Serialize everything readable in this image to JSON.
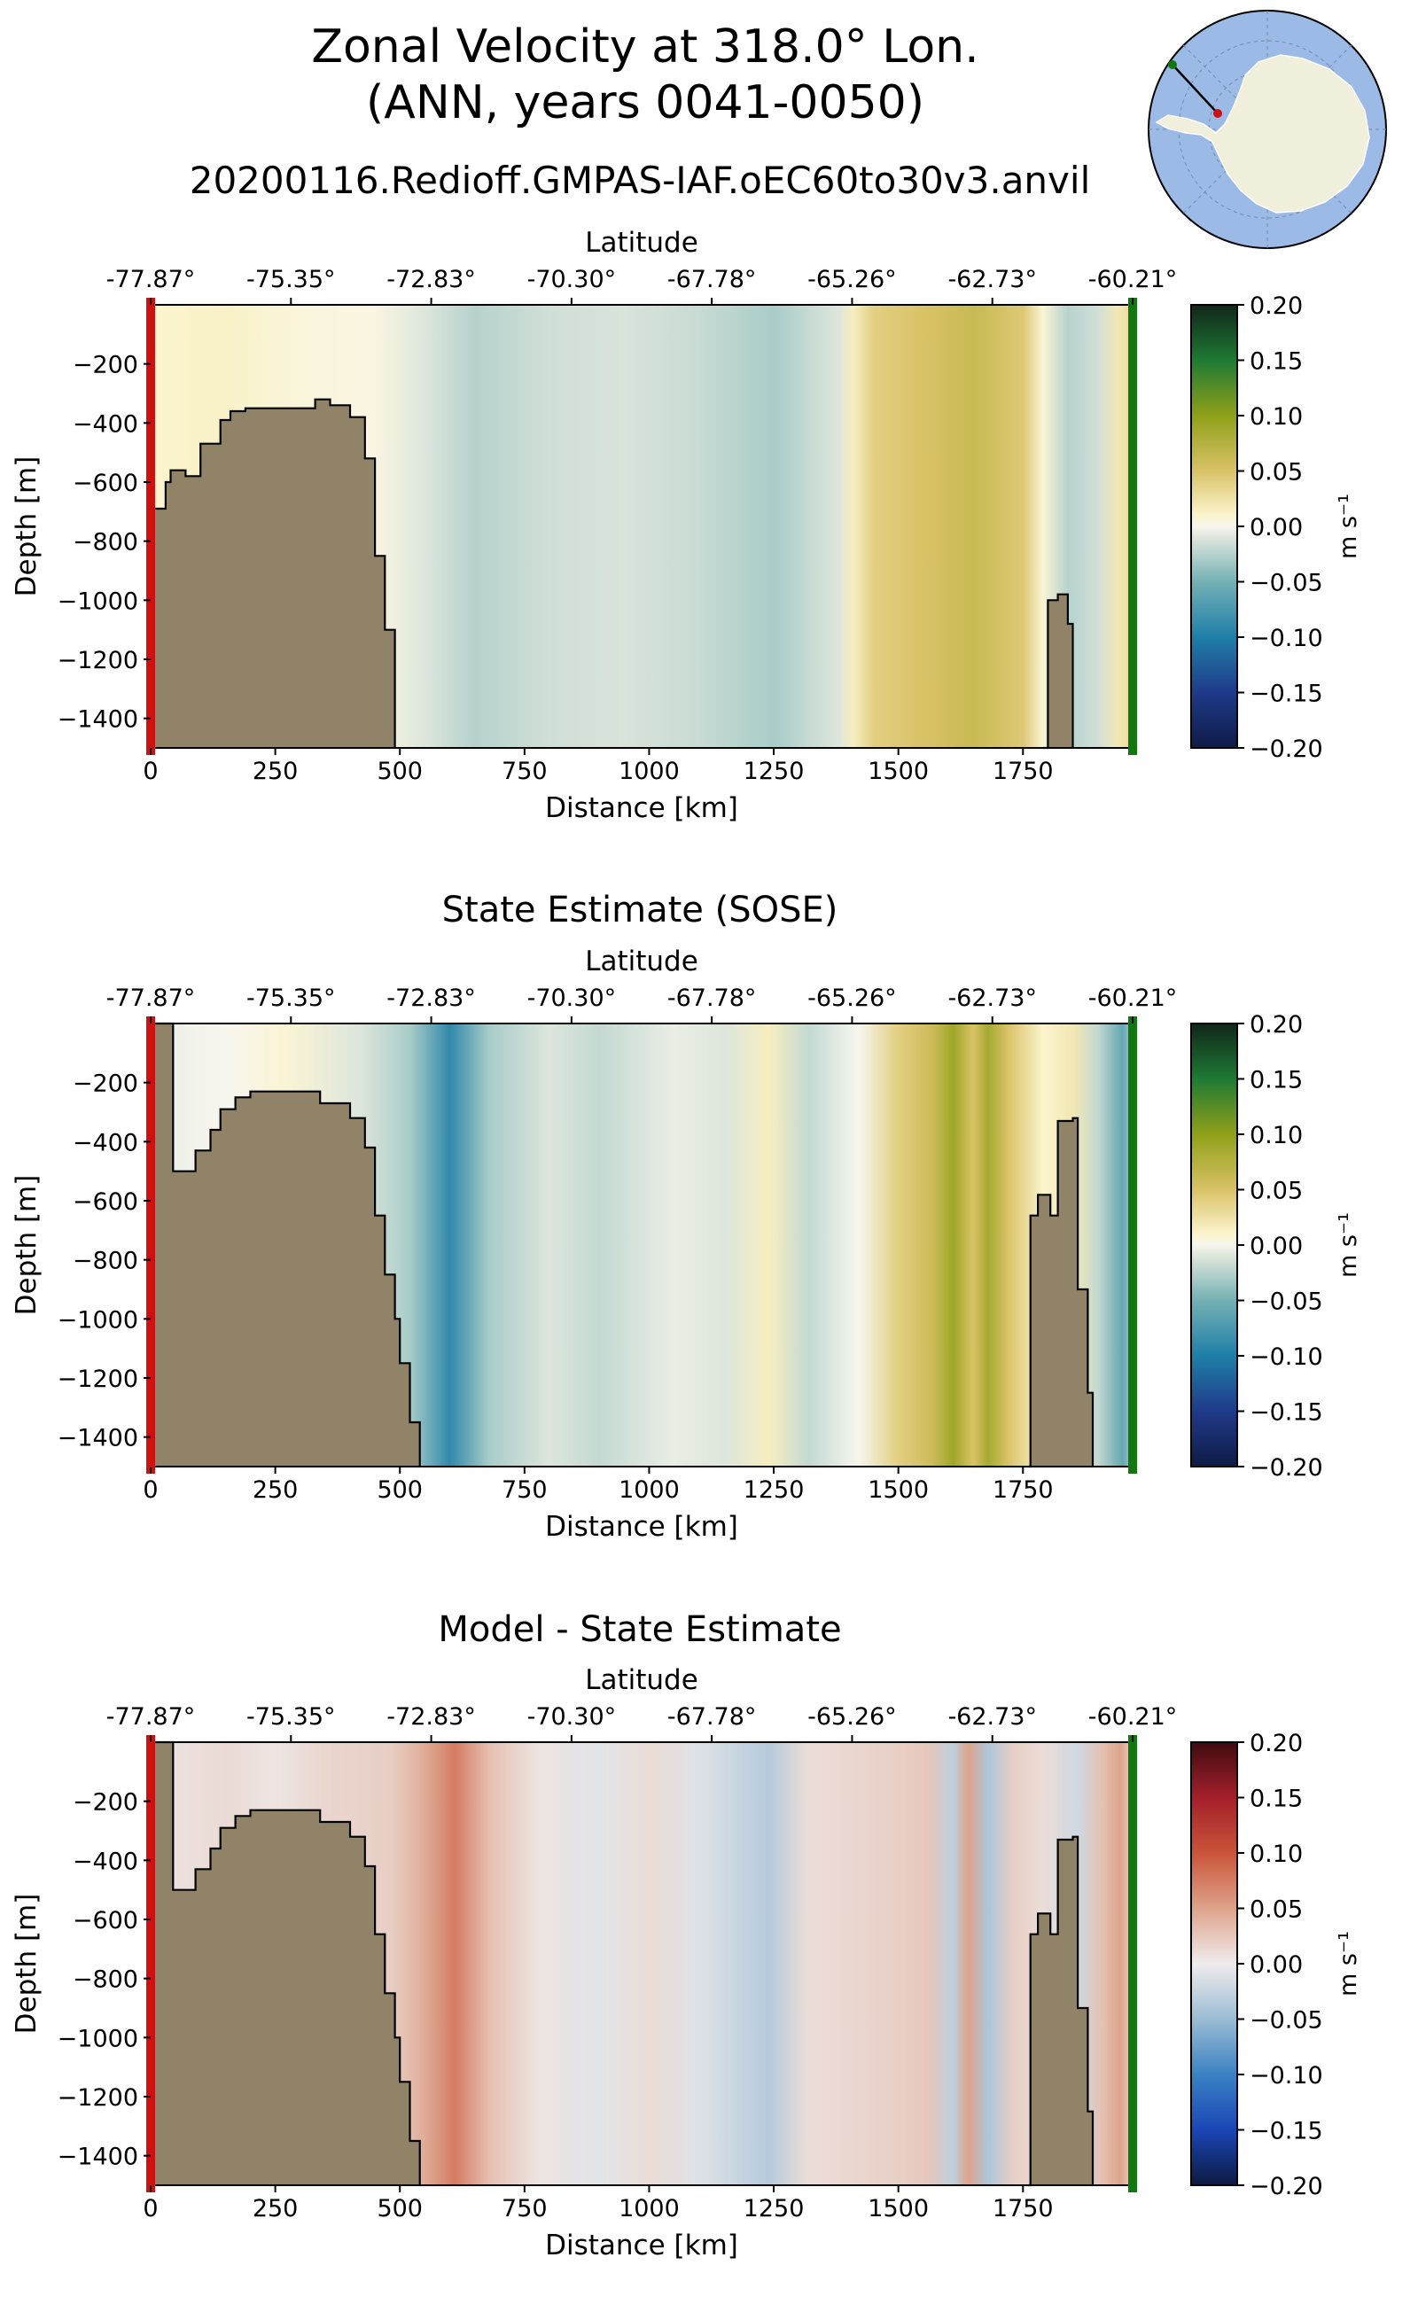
{
  "figure": {
    "title_line1": "Zonal Velocity at 318.0° Lon.",
    "title_line2": "(ANN, years 0041-0050)",
    "colors": {
      "bathymetry": "#918367",
      "start_marker": "#cc1111",
      "end_marker": "#117711",
      "inset_ocean": "#9bbbe6",
      "inset_land": "#efefdc"
    }
  },
  "chart_data": [
    {
      "type": "heatmap",
      "title": "20200116.Redioff.GMPAS-IAF.oEC60to30v3.anvil",
      "xlabel": "Distance [km]",
      "ylabel": "Depth [m]",
      "top_axis_label": "Latitude",
      "latitude_ticks": [
        "-77.87°",
        "-75.35°",
        "-72.83°",
        "-70.30°",
        "-67.78°",
        "-65.26°",
        "-62.73°",
        "-60.21°"
      ],
      "xlim": [
        0,
        1970
      ],
      "ylim": [
        -1500,
        0
      ],
      "x_ticks": [
        "0",
        "250",
        "500",
        "750",
        "1000",
        "1250",
        "1500",
        "1750"
      ],
      "y_ticks": [
        "-200",
        "-400",
        "-600",
        "-800",
        "-1000",
        "-1200",
        "-1400"
      ],
      "colorbar": {
        "label": "m s⁻¹",
        "ticks": [
          "0.20",
          "0.15",
          "0.10",
          "0.05",
          "0.00",
          "−0.05",
          "−0.10",
          "−0.15",
          "−0.20"
        ],
        "range": [
          -0.2,
          0.2
        ],
        "colormap": "velocity"
      },
      "velocity_profile": [
        {
          "x": 0,
          "v": 0.01
        },
        {
          "x": 150,
          "v": 0.012
        },
        {
          "x": 300,
          "v": 0.006
        },
        {
          "x": 450,
          "v": 0.004
        },
        {
          "x": 550,
          "v": -0.01
        },
        {
          "x": 650,
          "v": -0.025
        },
        {
          "x": 800,
          "v": -0.015
        },
        {
          "x": 950,
          "v": -0.012
        },
        {
          "x": 1100,
          "v": -0.018
        },
        {
          "x": 1250,
          "v": -0.03
        },
        {
          "x": 1380,
          "v": -0.01
        },
        {
          "x": 1410,
          "v": 0.015
        },
        {
          "x": 1450,
          "v": 0.04
        },
        {
          "x": 1550,
          "v": 0.05
        },
        {
          "x": 1650,
          "v": 0.062
        },
        {
          "x": 1750,
          "v": 0.045
        },
        {
          "x": 1790,
          "v": 0.008
        },
        {
          "x": 1840,
          "v": -0.025
        },
        {
          "x": 1900,
          "v": -0.015
        },
        {
          "x": 1940,
          "v": 0.02
        },
        {
          "x": 1970,
          "v": 0.03
        }
      ],
      "bathymetry": [
        {
          "x": 0,
          "depth": -690
        },
        {
          "x": 30,
          "depth": -600
        },
        {
          "x": 40,
          "depth": -560
        },
        {
          "x": 70,
          "depth": -580
        },
        {
          "x": 100,
          "depth": -470
        },
        {
          "x": 140,
          "depth": -390
        },
        {
          "x": 160,
          "depth": -360
        },
        {
          "x": 190,
          "depth": -350
        },
        {
          "x": 330,
          "depth": -320
        },
        {
          "x": 360,
          "depth": -340
        },
        {
          "x": 400,
          "depth": -380
        },
        {
          "x": 430,
          "depth": -520
        },
        {
          "x": 450,
          "depth": -850
        },
        {
          "x": 470,
          "depth": -1100
        },
        {
          "x": 490,
          "depth": -1500
        },
        {
          "x": 1790,
          "depth": -1500
        },
        {
          "x": 1800,
          "depth": -1000
        },
        {
          "x": 1820,
          "depth": -980
        },
        {
          "x": 1840,
          "depth": -1080
        },
        {
          "x": 1850,
          "depth": -1500
        }
      ]
    },
    {
      "type": "heatmap",
      "title": "State Estimate (SOSE)",
      "xlabel": "Distance [km]",
      "ylabel": "Depth [m]",
      "top_axis_label": "Latitude",
      "latitude_ticks": [
        "-77.87°",
        "-75.35°",
        "-72.83°",
        "-70.30°",
        "-67.78°",
        "-65.26°",
        "-62.73°",
        "-60.21°"
      ],
      "xlim": [
        0,
        1970
      ],
      "ylim": [
        -1500,
        0
      ],
      "x_ticks": [
        "0",
        "250",
        "500",
        "750",
        "1000",
        "1250",
        "1500",
        "1750"
      ],
      "y_ticks": [
        "-200",
        "-400",
        "-600",
        "-800",
        "-1000",
        "-1200",
        "-1400"
      ],
      "colorbar": {
        "label": "m s⁻¹",
        "ticks": [
          "0.20",
          "0.15",
          "0.10",
          "0.05",
          "0.00",
          "−0.05",
          "−0.10",
          "−0.15",
          "−0.20"
        ],
        "range": [
          -0.2,
          0.2
        ],
        "colormap": "velocity"
      },
      "velocity_profile": [
        {
          "x": 0,
          "v": -0.005
        },
        {
          "x": 150,
          "v": 0.0
        },
        {
          "x": 270,
          "v": 0.008
        },
        {
          "x": 420,
          "v": -0.01
        },
        {
          "x": 520,
          "v": -0.03
        },
        {
          "x": 600,
          "v": -0.09
        },
        {
          "x": 680,
          "v": -0.03
        },
        {
          "x": 800,
          "v": -0.01
        },
        {
          "x": 900,
          "v": -0.02
        },
        {
          "x": 1050,
          "v": -0.005
        },
        {
          "x": 1150,
          "v": -0.01
        },
        {
          "x": 1240,
          "v": 0.015
        },
        {
          "x": 1320,
          "v": -0.02
        },
        {
          "x": 1420,
          "v": 0.0
        },
        {
          "x": 1500,
          "v": 0.04
        },
        {
          "x": 1570,
          "v": 0.06
        },
        {
          "x": 1610,
          "v": 0.09
        },
        {
          "x": 1650,
          "v": 0.05
        },
        {
          "x": 1680,
          "v": 0.085
        },
        {
          "x": 1720,
          "v": 0.05
        },
        {
          "x": 1790,
          "v": 0.01
        },
        {
          "x": 1850,
          "v": 0.02
        },
        {
          "x": 1900,
          "v": -0.02
        },
        {
          "x": 1950,
          "v": -0.06
        },
        {
          "x": 1970,
          "v": -0.03
        }
      ],
      "bathymetry": [
        {
          "x": 0,
          "depth": 0
        },
        {
          "x": 40,
          "depth": 0
        },
        {
          "x": 45,
          "depth": -500
        },
        {
          "x": 70,
          "depth": -500
        },
        {
          "x": 90,
          "depth": -430
        },
        {
          "x": 120,
          "depth": -360
        },
        {
          "x": 140,
          "depth": -290
        },
        {
          "x": 170,
          "depth": -250
        },
        {
          "x": 200,
          "depth": -230
        },
        {
          "x": 310,
          "depth": -230
        },
        {
          "x": 340,
          "depth": -270
        },
        {
          "x": 400,
          "depth": -320
        },
        {
          "x": 430,
          "depth": -420
        },
        {
          "x": 450,
          "depth": -650
        },
        {
          "x": 470,
          "depth": -850
        },
        {
          "x": 490,
          "depth": -1000
        },
        {
          "x": 500,
          "depth": -1150
        },
        {
          "x": 520,
          "depth": -1350
        },
        {
          "x": 540,
          "depth": -1500
        },
        {
          "x": 1760,
          "depth": -1500
        },
        {
          "x": 1765,
          "depth": -650
        },
        {
          "x": 1780,
          "depth": -580
        },
        {
          "x": 1805,
          "depth": -650
        },
        {
          "x": 1820,
          "depth": -330
        },
        {
          "x": 1850,
          "depth": -320
        },
        {
          "x": 1860,
          "depth": -900
        },
        {
          "x": 1880,
          "depth": -1250
        },
        {
          "x": 1890,
          "depth": -1500
        }
      ]
    },
    {
      "type": "heatmap",
      "title": "Model - State Estimate",
      "xlabel": "Distance [km]",
      "ylabel": "Depth [m]",
      "top_axis_label": "Latitude",
      "latitude_ticks": [
        "-77.87°",
        "-75.35°",
        "-72.83°",
        "-70.30°",
        "-67.78°",
        "-65.26°",
        "-62.73°",
        "-60.21°"
      ],
      "xlim": [
        0,
        1970
      ],
      "ylim": [
        -1500,
        0
      ],
      "x_ticks": [
        "0",
        "250",
        "500",
        "750",
        "1000",
        "1250",
        "1500",
        "1750"
      ],
      "y_ticks": [
        "-200",
        "-400",
        "-600",
        "-800",
        "-1000",
        "-1200",
        "-1400"
      ],
      "colorbar": {
        "label": "m s⁻¹",
        "ticks": [
          "0.20",
          "0.15",
          "0.10",
          "0.05",
          "0.00",
          "−0.05",
          "−0.10",
          "−0.15",
          "−0.20"
        ],
        "range": [
          -0.2,
          0.2
        ],
        "colormap": "difference"
      },
      "velocity_profile": [
        {
          "x": 0,
          "v": 0.005
        },
        {
          "x": 150,
          "v": 0.012
        },
        {
          "x": 250,
          "v": 0.005
        },
        {
          "x": 350,
          "v": 0.015
        },
        {
          "x": 480,
          "v": 0.02
        },
        {
          "x": 540,
          "v": 0.04
        },
        {
          "x": 610,
          "v": 0.075
        },
        {
          "x": 680,
          "v": 0.03
        },
        {
          "x": 780,
          "v": 0.005
        },
        {
          "x": 900,
          "v": -0.008
        },
        {
          "x": 1000,
          "v": 0.01
        },
        {
          "x": 1100,
          "v": -0.01
        },
        {
          "x": 1240,
          "v": -0.035
        },
        {
          "x": 1320,
          "v": 0.01
        },
        {
          "x": 1420,
          "v": 0.015
        },
        {
          "x": 1500,
          "v": 0.02
        },
        {
          "x": 1560,
          "v": 0.025
        },
        {
          "x": 1610,
          "v": -0.03
        },
        {
          "x": 1640,
          "v": 0.05
        },
        {
          "x": 1680,
          "v": -0.04
        },
        {
          "x": 1730,
          "v": 0.02
        },
        {
          "x": 1790,
          "v": 0.01
        },
        {
          "x": 1860,
          "v": -0.02
        },
        {
          "x": 1910,
          "v": 0.03
        },
        {
          "x": 1945,
          "v": 0.05
        },
        {
          "x": 1970,
          "v": 0.02
        }
      ],
      "bathymetry": [
        {
          "x": 0,
          "depth": 0
        },
        {
          "x": 40,
          "depth": 0
        },
        {
          "x": 45,
          "depth": -500
        },
        {
          "x": 70,
          "depth": -500
        },
        {
          "x": 90,
          "depth": -430
        },
        {
          "x": 120,
          "depth": -360
        },
        {
          "x": 140,
          "depth": -290
        },
        {
          "x": 170,
          "depth": -250
        },
        {
          "x": 200,
          "depth": -230
        },
        {
          "x": 310,
          "depth": -230
        },
        {
          "x": 340,
          "depth": -270
        },
        {
          "x": 400,
          "depth": -320
        },
        {
          "x": 430,
          "depth": -420
        },
        {
          "x": 450,
          "depth": -650
        },
        {
          "x": 470,
          "depth": -850
        },
        {
          "x": 490,
          "depth": -1000
        },
        {
          "x": 500,
          "depth": -1150
        },
        {
          "x": 520,
          "depth": -1350
        },
        {
          "x": 540,
          "depth": -1500
        },
        {
          "x": 1760,
          "depth": -1500
        },
        {
          "x": 1765,
          "depth": -650
        },
        {
          "x": 1780,
          "depth": -580
        },
        {
          "x": 1805,
          "depth": -650
        },
        {
          "x": 1820,
          "depth": -330
        },
        {
          "x": 1850,
          "depth": -320
        },
        {
          "x": 1860,
          "depth": -900
        },
        {
          "x": 1880,
          "depth": -1250
        },
        {
          "x": 1890,
          "depth": -1500
        }
      ]
    }
  ]
}
